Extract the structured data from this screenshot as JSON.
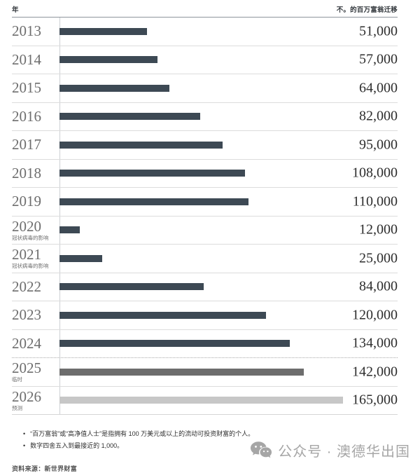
{
  "chart_data": {
    "type": "bar",
    "orientation": "horizontal",
    "left_header": "年",
    "right_header": "不。的百万富翁迁移",
    "x_max": 165000,
    "grid": false,
    "rows": [
      {
        "year": "2013",
        "note": "",
        "value": 51000,
        "label": "51,000",
        "color": "#3d4954"
      },
      {
        "year": "2014",
        "note": "",
        "value": 57000,
        "label": "57,000",
        "color": "#3d4954"
      },
      {
        "year": "2015",
        "note": "",
        "value": 64000,
        "label": "64,000",
        "color": "#3d4954"
      },
      {
        "year": "2016",
        "note": "",
        "value": 82000,
        "label": "82,000",
        "color": "#3d4954"
      },
      {
        "year": "2017",
        "note": "",
        "value": 95000,
        "label": "95,000",
        "color": "#3d4954"
      },
      {
        "year": "2018",
        "note": "",
        "value": 108000,
        "label": "108,000",
        "color": "#3d4954"
      },
      {
        "year": "2019",
        "note": "",
        "value": 110000,
        "label": "110,000",
        "color": "#3d4954"
      },
      {
        "year": "2020",
        "note": "冠状病毒的影响",
        "value": 12000,
        "label": "12,000",
        "color": "#3d4954"
      },
      {
        "year": "2021",
        "note": "冠状病毒的影响",
        "value": 25000,
        "label": "25,000",
        "color": "#3d4954"
      },
      {
        "year": "2022",
        "note": "",
        "value": 84000,
        "label": "84,000",
        "color": "#3d4954"
      },
      {
        "year": "2023",
        "note": "",
        "value": 120000,
        "label": "120,000",
        "color": "#3d4954"
      },
      {
        "year": "2024",
        "note": "",
        "value": 134000,
        "label": "134,000",
        "color": "#3d4954"
      },
      {
        "year": "2025",
        "note": "临时",
        "value": 142000,
        "label": "142,000",
        "color": "#6d6d6d",
        "separator_above": "dotted"
      },
      {
        "year": "2026",
        "note": "预测",
        "value": 165000,
        "label": "165,000",
        "color": "#c7c7c7"
      }
    ],
    "colors": {
      "bar_default": "#3d4954",
      "bar_provisional": "#6d6d6d",
      "bar_forecast": "#c7c7c7"
    }
  },
  "footnotes": [
    "“百万富翁”或“高净值人士”是指拥有 100 万美元或以上的流动可投资财富的个人。",
    "数字四舍五入到最接近的 1,000。"
  ],
  "source": {
    "text": "资料来源：新世界财富"
  },
  "watermark": {
    "icon": "wechat-icon",
    "text": "公众号 · 澳德华出国"
  }
}
